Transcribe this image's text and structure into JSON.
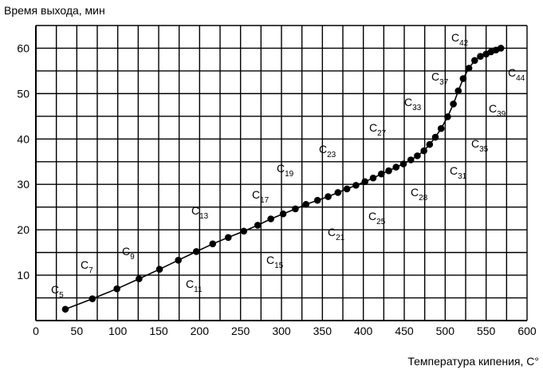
{
  "chart_data": {
    "type": "line",
    "ylabel": "Время выхода, мин",
    "xlabel": "Температура кипения, С°",
    "xlim": [
      0,
      600
    ],
    "ylim": [
      0,
      65
    ],
    "xticks": [
      0,
      50,
      100,
      150,
      200,
      250,
      300,
      350,
      400,
      450,
      500,
      550,
      600
    ],
    "yticks": [
      10,
      20,
      30,
      40,
      50,
      60
    ],
    "grid": true,
    "series": [
      {
        "x": [
          36,
          69,
          99,
          126,
          151,
          174,
          196,
          216,
          235,
          254,
          271,
          287,
          302,
          317,
          330,
          344,
          357,
          369,
          380,
          391,
          402,
          412,
          422,
          431,
          440,
          449,
          458,
          466,
          474,
          481,
          488,
          495,
          503,
          510,
          516,
          522,
          529,
          536,
          543,
          550,
          556,
          562,
          568
        ],
        "y": [
          2.5,
          4.8,
          7,
          9.2,
          11.3,
          13.3,
          15.2,
          16.9,
          18.3,
          19.7,
          21,
          22.4,
          23.5,
          24.6,
          25.6,
          26.5,
          27.3,
          28.2,
          29,
          29.8,
          30.6,
          31.4,
          32.3,
          33,
          33.8,
          34.5,
          35.4,
          36.3,
          37.4,
          38.8,
          40.4,
          42.3,
          44.9,
          47.7,
          50.6,
          53.3,
          55.6,
          57.3,
          58.2,
          58.7,
          59.2,
          59.6,
          60
        ]
      }
    ],
    "annotations": [
      {
        "main": "C",
        "sub": "5"
      },
      {
        "main": "C",
        "sub": "7"
      },
      {
        "main": "C",
        "sub": "9"
      },
      {
        "main": "C",
        "sub": "11"
      },
      {
        "main": "C",
        "sub": "13"
      },
      {
        "main": "C",
        "sub": "15"
      },
      {
        "main": "C",
        "sub": "17"
      },
      {
        "main": "C",
        "sub": "19"
      },
      {
        "main": "C",
        "sub": "21"
      },
      {
        "main": "C",
        "sub": "23"
      },
      {
        "main": "C",
        "sub": "25"
      },
      {
        "main": "C",
        "sub": "27"
      },
      {
        "main": "C",
        "sub": "28"
      },
      {
        "main": "C",
        "sub": "31"
      },
      {
        "main": "C",
        "sub": "33"
      },
      {
        "main": "C",
        "sub": "35"
      },
      {
        "main": "C",
        "sub": "37"
      },
      {
        "main": "C",
        "sub": "39"
      },
      {
        "main": "C",
        "sub": "42"
      },
      {
        "main": "C",
        "sub": "44"
      }
    ]
  }
}
